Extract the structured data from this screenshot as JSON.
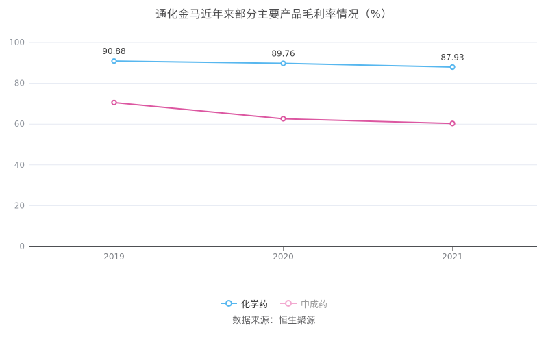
{
  "page": {
    "title": "通化金马近年来部分主要产品毛利率情况（%）",
    "source": "数据来源：恒生聚源"
  },
  "legend": {
    "position": "bottom-center",
    "items": [
      {
        "label": "化学药",
        "marker_color": "#57b7ef",
        "label_color": "#2f2f2f"
      },
      {
        "label": "中成药",
        "marker_color": "#f2a9d0",
        "label_color": "#9b9b9b"
      }
    ]
  },
  "chart_data": {
    "type": "line",
    "title": "通化金马近年来部分主要产品毛利率情况（%）",
    "categories": [
      "2019",
      "2020",
      "2021"
    ],
    "series": [
      {
        "name": "化学药",
        "color": "#57b7ef",
        "values": [
          90.88,
          89.76,
          87.93
        ],
        "point_labels": [
          "90.88",
          "89.76",
          "87.93"
        ]
      },
      {
        "name": "中成药",
        "color": "#dc57a1",
        "values": [
          70.5,
          62.6,
          60.3
        ],
        "point_labels": []
      }
    ],
    "ylim": [
      0,
      100
    ],
    "yticks": [
      0,
      20,
      40,
      60,
      80,
      100
    ],
    "grid": true,
    "marker": "hollow-circle",
    "legend_position": "bottom",
    "source_note": "数据来源：恒生聚源"
  },
  "colors": {
    "background": "#ffffff",
    "grid_line": "#e5e9f2",
    "axis_line": "#4e5054",
    "tick_mark": "#8f8f8f",
    "y_tick_label": "#90959d",
    "x_tick_label": "#7f8287",
    "value_label": "#404040",
    "title": "#4c4c4e",
    "source": "#5d5d5f"
  }
}
